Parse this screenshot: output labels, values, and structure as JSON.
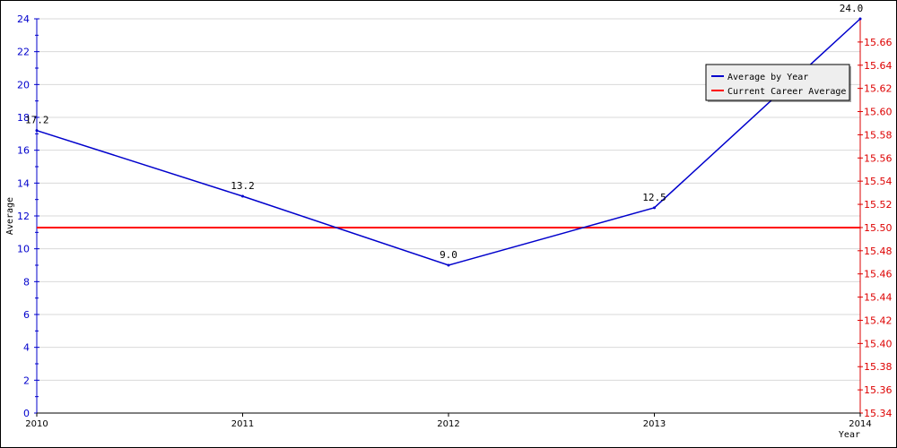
{
  "colors": {
    "average_line": "#0000cc",
    "career_line": "#ff0000",
    "left_axis": "#0000cc",
    "right_axis": "#dd0000",
    "grid": "#d9d9d9",
    "legend_bg": "#eeeeee"
  },
  "chart_data": {
    "type": "line",
    "title": "",
    "xlabel": "Year",
    "ylabel": "Average",
    "x": [
      "2010",
      "2011",
      "2012",
      "2013",
      "2014"
    ],
    "ylim": [
      0,
      24
    ],
    "y_ticks": [
      0,
      2,
      4,
      6,
      8,
      10,
      12,
      14,
      16,
      18,
      20,
      22,
      24
    ],
    "y2lim": [
      15.34,
      15.68
    ],
    "y2_ticks": [
      "15.34",
      "15.36",
      "15.38",
      "15.40",
      "15.42",
      "15.44",
      "15.46",
      "15.48",
      "15.50",
      "15.52",
      "15.54",
      "15.56",
      "15.58",
      "15.60",
      "15.62",
      "15.64",
      "15.66"
    ],
    "grid": true,
    "legend_position": "top-right",
    "series": [
      {
        "name": "Average by Year",
        "axis": "left",
        "values": [
          17.2,
          13.2,
          9.0,
          12.5,
          24.0
        ],
        "labels": [
          "17.2",
          "13.2",
          "9.0",
          "12.5",
          "24.0"
        ]
      },
      {
        "name": "Current Career Average",
        "axis": "right",
        "value": 15.5
      }
    ]
  }
}
